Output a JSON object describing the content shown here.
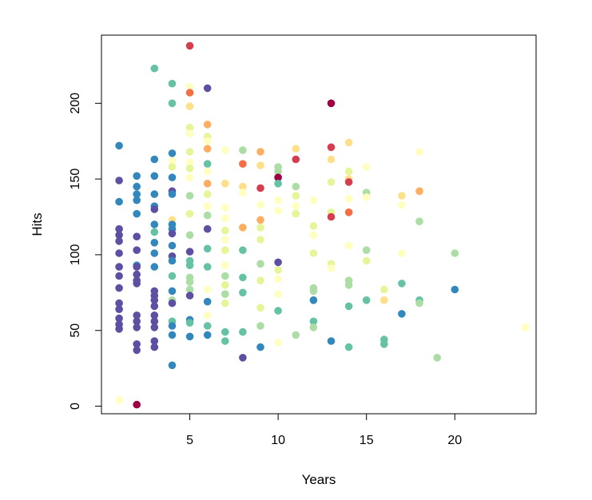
{
  "chart_data": {
    "type": "scatter",
    "title": "",
    "xlabel": "Years",
    "ylabel": "Hits",
    "xlim": [
      0,
      24.6
    ],
    "ylim": [
      -5,
      245
    ],
    "xticks": [
      5,
      10,
      15,
      20
    ],
    "yticks": [
      0,
      50,
      100,
      150,
      200
    ],
    "grid": false,
    "legend": "none",
    "palette": [
      "#5E4FA2",
      "#3288BD",
      "#66C2A5",
      "#ABDDA4",
      "#E6F598",
      "#FFFFBF",
      "#FEE08B",
      "#FDAE61",
      "#F46D43",
      "#D53E4F",
      "#9E0142"
    ],
    "points": [
      {
        "x": 1,
        "y": 172,
        "c": 1
      },
      {
        "x": 1,
        "y": 149,
        "c": 0
      },
      {
        "x": 1,
        "y": 135,
        "c": 1
      },
      {
        "x": 1,
        "y": 117,
        "c": 0
      },
      {
        "x": 1,
        "y": 113,
        "c": 0
      },
      {
        "x": 1,
        "y": 109,
        "c": 0
      },
      {
        "x": 1,
        "y": 101,
        "c": 0
      },
      {
        "x": 1,
        "y": 92,
        "c": 0
      },
      {
        "x": 1,
        "y": 86,
        "c": 0
      },
      {
        "x": 1,
        "y": 78,
        "c": 0
      },
      {
        "x": 1,
        "y": 68,
        "c": 0
      },
      {
        "x": 1,
        "y": 64,
        "c": 0
      },
      {
        "x": 1,
        "y": 58,
        "c": 0
      },
      {
        "x": 1,
        "y": 54,
        "c": 0
      },
      {
        "x": 1,
        "y": 51,
        "c": 0
      },
      {
        "x": 1,
        "y": 4,
        "c": 5
      },
      {
        "x": 2,
        "y": 152,
        "c": 1
      },
      {
        "x": 2,
        "y": 145,
        "c": 1
      },
      {
        "x": 2,
        "y": 140,
        "c": 1
      },
      {
        "x": 2,
        "y": 136,
        "c": 1
      },
      {
        "x": 2,
        "y": 127,
        "c": 1
      },
      {
        "x": 2,
        "y": 112,
        "c": 0
      },
      {
        "x": 2,
        "y": 103,
        "c": 0
      },
      {
        "x": 2,
        "y": 93,
        "c": 1
      },
      {
        "x": 2,
        "y": 92,
        "c": 0
      },
      {
        "x": 2,
        "y": 87,
        "c": 0
      },
      {
        "x": 2,
        "y": 83,
        "c": 0
      },
      {
        "x": 2,
        "y": 81,
        "c": 0
      },
      {
        "x": 2,
        "y": 60,
        "c": 0
      },
      {
        "x": 2,
        "y": 56,
        "c": 0
      },
      {
        "x": 2,
        "y": 52,
        "c": 0
      },
      {
        "x": 2,
        "y": 41,
        "c": 0
      },
      {
        "x": 2,
        "y": 37,
        "c": 0
      },
      {
        "x": 2,
        "y": 1,
        "c": 10
      },
      {
        "x": 3,
        "y": 223,
        "c": 2
      },
      {
        "x": 3,
        "y": 163,
        "c": 1
      },
      {
        "x": 3,
        "y": 152,
        "c": 1
      },
      {
        "x": 3,
        "y": 140,
        "c": 1
      },
      {
        "x": 3,
        "y": 132,
        "c": 1
      },
      {
        "x": 3,
        "y": 130,
        "c": 0
      },
      {
        "x": 3,
        "y": 120,
        "c": 1
      },
      {
        "x": 3,
        "y": 115,
        "c": 2
      },
      {
        "x": 3,
        "y": 108,
        "c": 1
      },
      {
        "x": 3,
        "y": 101,
        "c": 1
      },
      {
        "x": 3,
        "y": 92,
        "c": 1
      },
      {
        "x": 3,
        "y": 76,
        "c": 0
      },
      {
        "x": 3,
        "y": 73,
        "c": 0
      },
      {
        "x": 3,
        "y": 70,
        "c": 0
      },
      {
        "x": 3,
        "y": 66,
        "c": 0
      },
      {
        "x": 3,
        "y": 60,
        "c": 0
      },
      {
        "x": 3,
        "y": 56,
        "c": 0
      },
      {
        "x": 3,
        "y": 52,
        "c": 0
      },
      {
        "x": 3,
        "y": 43,
        "c": 0
      },
      {
        "x": 3,
        "y": 39,
        "c": 0
      },
      {
        "x": 4,
        "y": 213,
        "c": 2
      },
      {
        "x": 4,
        "y": 200,
        "c": 2
      },
      {
        "x": 4,
        "y": 167,
        "c": 1
      },
      {
        "x": 4,
        "y": 162,
        "c": 5
      },
      {
        "x": 4,
        "y": 158,
        "c": 4
      },
      {
        "x": 4,
        "y": 151,
        "c": 1
      },
      {
        "x": 4,
        "y": 142,
        "c": 0
      },
      {
        "x": 4,
        "y": 140,
        "c": 1
      },
      {
        "x": 4,
        "y": 123,
        "c": 6
      },
      {
        "x": 4,
        "y": 120,
        "c": 1
      },
      {
        "x": 4,
        "y": 117,
        "c": 1
      },
      {
        "x": 4,
        "y": 114,
        "c": 0
      },
      {
        "x": 4,
        "y": 106,
        "c": 1
      },
      {
        "x": 4,
        "y": 99,
        "c": 0
      },
      {
        "x": 4,
        "y": 96,
        "c": 1
      },
      {
        "x": 4,
        "y": 86,
        "c": 2
      },
      {
        "x": 4,
        "y": 76,
        "c": 1
      },
      {
        "x": 4,
        "y": 70,
        "c": 3
      },
      {
        "x": 4,
        "y": 68,
        "c": 0
      },
      {
        "x": 4,
        "y": 56,
        "c": 2
      },
      {
        "x": 4,
        "y": 53,
        "c": 1
      },
      {
        "x": 4,
        "y": 47,
        "c": 1
      },
      {
        "x": 4,
        "y": 27,
        "c": 1
      },
      {
        "x": 5,
        "y": 238,
        "c": 9
      },
      {
        "x": 5,
        "y": 211,
        "c": 5
      },
      {
        "x": 5,
        "y": 207,
        "c": 8
      },
      {
        "x": 5,
        "y": 198,
        "c": 6
      },
      {
        "x": 5,
        "y": 184,
        "c": 4
      },
      {
        "x": 5,
        "y": 180,
        "c": 5
      },
      {
        "x": 5,
        "y": 168,
        "c": 4
      },
      {
        "x": 5,
        "y": 161,
        "c": 5
      },
      {
        "x": 5,
        "y": 157,
        "c": 4
      },
      {
        "x": 5,
        "y": 151,
        "c": 5
      },
      {
        "x": 5,
        "y": 139,
        "c": 3
      },
      {
        "x": 5,
        "y": 127,
        "c": 4
      },
      {
        "x": 5,
        "y": 113,
        "c": 3
      },
      {
        "x": 5,
        "y": 102,
        "c": 0
      },
      {
        "x": 5,
        "y": 96,
        "c": 2
      },
      {
        "x": 5,
        "y": 93,
        "c": 2
      },
      {
        "x": 5,
        "y": 85,
        "c": 3
      },
      {
        "x": 5,
        "y": 82,
        "c": 3
      },
      {
        "x": 5,
        "y": 77,
        "c": 3
      },
      {
        "x": 5,
        "y": 73,
        "c": 0
      },
      {
        "x": 5,
        "y": 57,
        "c": 1
      },
      {
        "x": 5,
        "y": 55,
        "c": 2
      },
      {
        "x": 5,
        "y": 46,
        "c": 1
      },
      {
        "x": 6,
        "y": 210,
        "c": 0
      },
      {
        "x": 6,
        "y": 186,
        "c": 7
      },
      {
        "x": 6,
        "y": 178,
        "c": 4
      },
      {
        "x": 6,
        "y": 175,
        "c": 5
      },
      {
        "x": 6,
        "y": 170,
        "c": 7
      },
      {
        "x": 6,
        "y": 160,
        "c": 2
      },
      {
        "x": 6,
        "y": 155,
        "c": 5
      },
      {
        "x": 6,
        "y": 147,
        "c": 7
      },
      {
        "x": 6,
        "y": 140,
        "c": 4
      },
      {
        "x": 6,
        "y": 132,
        "c": 5
      },
      {
        "x": 6,
        "y": 126,
        "c": 3
      },
      {
        "x": 6,
        "y": 117,
        "c": 0
      },
      {
        "x": 6,
        "y": 104,
        "c": 2
      },
      {
        "x": 6,
        "y": 92,
        "c": 2
      },
      {
        "x": 6,
        "y": 77,
        "c": 5
      },
      {
        "x": 6,
        "y": 69,
        "c": 1
      },
      {
        "x": 6,
        "y": 60,
        "c": 5
      },
      {
        "x": 6,
        "y": 53,
        "c": 2
      },
      {
        "x": 6,
        "y": 47,
        "c": 1
      },
      {
        "x": 7,
        "y": 169,
        "c": 5
      },
      {
        "x": 7,
        "y": 147,
        "c": 6
      },
      {
        "x": 7,
        "y": 131,
        "c": 5
      },
      {
        "x": 7,
        "y": 124,
        "c": 5
      },
      {
        "x": 7,
        "y": 116,
        "c": 4
      },
      {
        "x": 7,
        "y": 110,
        "c": 5
      },
      {
        "x": 7,
        "y": 103,
        "c": 4
      },
      {
        "x": 7,
        "y": 93,
        "c": 5
      },
      {
        "x": 7,
        "y": 86,
        "c": 3
      },
      {
        "x": 7,
        "y": 80,
        "c": 4
      },
      {
        "x": 7,
        "y": 74,
        "c": 3
      },
      {
        "x": 7,
        "y": 68,
        "c": 4
      },
      {
        "x": 7,
        "y": 49,
        "c": 2
      },
      {
        "x": 7,
        "y": 43,
        "c": 2
      },
      {
        "x": 8,
        "y": 169,
        "c": 3
      },
      {
        "x": 8,
        "y": 160,
        "c": 8
      },
      {
        "x": 8,
        "y": 145,
        "c": 6
      },
      {
        "x": 8,
        "y": 141,
        "c": 5
      },
      {
        "x": 8,
        "y": 118,
        "c": 7
      },
      {
        "x": 8,
        "y": 103,
        "c": 2
      },
      {
        "x": 8,
        "y": 85,
        "c": 2
      },
      {
        "x": 8,
        "y": 75,
        "c": 2
      },
      {
        "x": 8,
        "y": 49,
        "c": 2
      },
      {
        "x": 8,
        "y": 32,
        "c": 0
      },
      {
        "x": 9,
        "y": 168,
        "c": 7
      },
      {
        "x": 9,
        "y": 159,
        "c": 6
      },
      {
        "x": 9,
        "y": 144,
        "c": 9
      },
      {
        "x": 9,
        "y": 133,
        "c": 5
      },
      {
        "x": 9,
        "y": 123,
        "c": 7
      },
      {
        "x": 9,
        "y": 118,
        "c": 4
      },
      {
        "x": 9,
        "y": 110,
        "c": 4
      },
      {
        "x": 9,
        "y": 94,
        "c": 3
      },
      {
        "x": 9,
        "y": 83,
        "c": 4
      },
      {
        "x": 9,
        "y": 65,
        "c": 4
      },
      {
        "x": 9,
        "y": 53,
        "c": 3
      },
      {
        "x": 9,
        "y": 39,
        "c": 1
      },
      {
        "x": 10,
        "y": 158,
        "c": 3
      },
      {
        "x": 10,
        "y": 155,
        "c": 3
      },
      {
        "x": 10,
        "y": 151,
        "c": 10
      },
      {
        "x": 10,
        "y": 147,
        "c": 2
      },
      {
        "x": 10,
        "y": 136,
        "c": 5
      },
      {
        "x": 10,
        "y": 129,
        "c": 5
      },
      {
        "x": 10,
        "y": 95,
        "c": 0
      },
      {
        "x": 10,
        "y": 90,
        "c": 4
      },
      {
        "x": 10,
        "y": 84,
        "c": 5
      },
      {
        "x": 10,
        "y": 74,
        "c": 5
      },
      {
        "x": 10,
        "y": 63,
        "c": 2
      },
      {
        "x": 10,
        "y": 42,
        "c": 5
      },
      {
        "x": 11,
        "y": 170,
        "c": 6
      },
      {
        "x": 11,
        "y": 163,
        "c": 9
      },
      {
        "x": 11,
        "y": 145,
        "c": 3
      },
      {
        "x": 11,
        "y": 139,
        "c": 4
      },
      {
        "x": 11,
        "y": 132,
        "c": 5
      },
      {
        "x": 11,
        "y": 127,
        "c": 4
      },
      {
        "x": 11,
        "y": 47,
        "c": 3
      },
      {
        "x": 12,
        "y": 136,
        "c": 5
      },
      {
        "x": 12,
        "y": 119,
        "c": 4
      },
      {
        "x": 12,
        "y": 113,
        "c": 5
      },
      {
        "x": 12,
        "y": 101,
        "c": 4
      },
      {
        "x": 12,
        "y": 78,
        "c": 3
      },
      {
        "x": 12,
        "y": 76,
        "c": 3
      },
      {
        "x": 12,
        "y": 70,
        "c": 1
      },
      {
        "x": 12,
        "y": 56,
        "c": 2
      },
      {
        "x": 12,
        "y": 52,
        "c": 3
      },
      {
        "x": 13,
        "y": 200,
        "c": 10
      },
      {
        "x": 13,
        "y": 171,
        "c": 9
      },
      {
        "x": 13,
        "y": 163,
        "c": 6
      },
      {
        "x": 13,
        "y": 148,
        "c": 4
      },
      {
        "x": 13,
        "y": 128,
        "c": 4
      },
      {
        "x": 13,
        "y": 125,
        "c": 9
      },
      {
        "x": 13,
        "y": 94,
        "c": 4
      },
      {
        "x": 13,
        "y": 91,
        "c": 5
      },
      {
        "x": 13,
        "y": 43,
        "c": 1
      },
      {
        "x": 14,
        "y": 174,
        "c": 6
      },
      {
        "x": 14,
        "y": 155,
        "c": 4
      },
      {
        "x": 14,
        "y": 150,
        "c": 6
      },
      {
        "x": 14,
        "y": 148,
        "c": 9
      },
      {
        "x": 14,
        "y": 137,
        "c": 5
      },
      {
        "x": 14,
        "y": 128,
        "c": 8
      },
      {
        "x": 14,
        "y": 106,
        "c": 5
      },
      {
        "x": 14,
        "y": 83,
        "c": 3
      },
      {
        "x": 14,
        "y": 80,
        "c": 3
      },
      {
        "x": 14,
        "y": 66,
        "c": 2
      },
      {
        "x": 14,
        "y": 39,
        "c": 2
      },
      {
        "x": 15,
        "y": 158,
        "c": 5
      },
      {
        "x": 15,
        "y": 141,
        "c": 3
      },
      {
        "x": 15,
        "y": 138,
        "c": 5
      },
      {
        "x": 15,
        "y": 103,
        "c": 3
      },
      {
        "x": 15,
        "y": 96,
        "c": 4
      },
      {
        "x": 15,
        "y": 70,
        "c": 2
      },
      {
        "x": 16,
        "y": 77,
        "c": 4
      },
      {
        "x": 16,
        "y": 70,
        "c": 6
      },
      {
        "x": 16,
        "y": 44,
        "c": 2
      },
      {
        "x": 16,
        "y": 41,
        "c": 2
      },
      {
        "x": 17,
        "y": 139,
        "c": 6
      },
      {
        "x": 17,
        "y": 133,
        "c": 5
      },
      {
        "x": 17,
        "y": 101,
        "c": 5
      },
      {
        "x": 17,
        "y": 81,
        "c": 2
      },
      {
        "x": 17,
        "y": 61,
        "c": 1
      },
      {
        "x": 18,
        "y": 168,
        "c": 5
      },
      {
        "x": 18,
        "y": 142,
        "c": 7
      },
      {
        "x": 18,
        "y": 122,
        "c": 3
      },
      {
        "x": 18,
        "y": 70,
        "c": 2
      },
      {
        "x": 18,
        "y": 68,
        "c": 3
      },
      {
        "x": 19,
        "y": 32,
        "c": 3
      },
      {
        "x": 20,
        "y": 101,
        "c": 3
      },
      {
        "x": 20,
        "y": 77,
        "c": 1
      },
      {
        "x": 24,
        "y": 52,
        "c": 5
      }
    ]
  }
}
